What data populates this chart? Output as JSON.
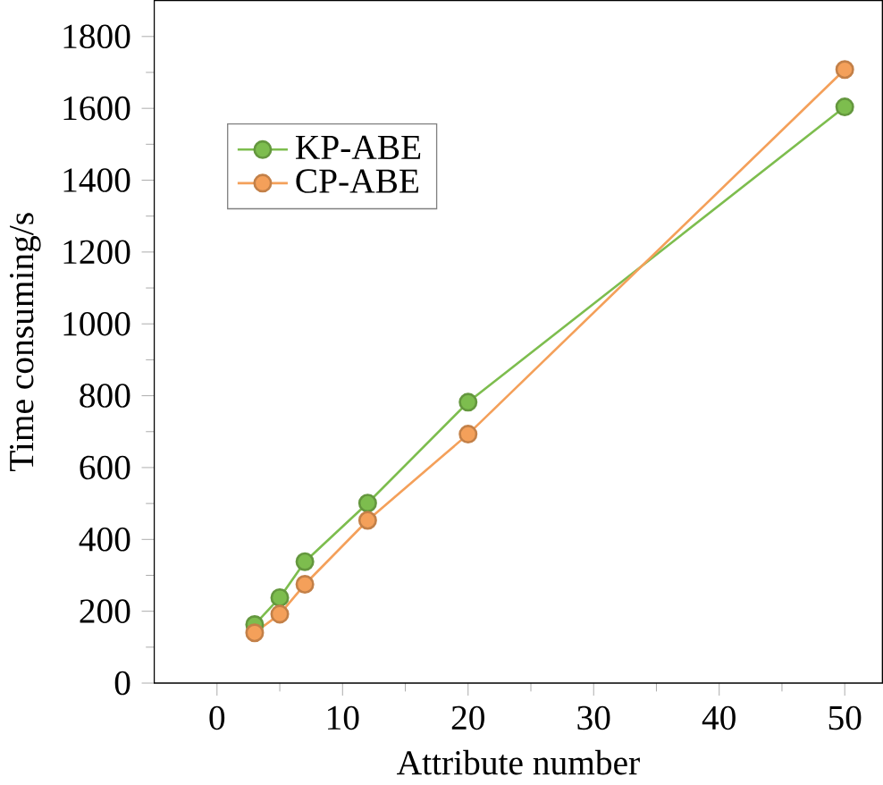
{
  "chart_data": {
    "type": "line",
    "xlabel": "Attribute number",
    "ylabel": "Time consuming/s",
    "x": [
      3,
      5,
      7,
      12,
      20,
      50
    ],
    "series": [
      {
        "name": "KP-ABE",
        "color": "#7dbd4e",
        "values": [
          163,
          238,
          338,
          501,
          782,
          1604
        ]
      },
      {
        "name": "CP-ABE",
        "color": "#f4a05a",
        "values": [
          140,
          192,
          275,
          453,
          693,
          1708
        ]
      }
    ],
    "xlim": [
      -5,
      53
    ],
    "ylim": [
      0,
      1900
    ],
    "xticks": [
      0,
      10,
      20,
      30,
      40,
      50
    ],
    "yticks": [
      0,
      200,
      400,
      600,
      800,
      1000,
      1200,
      1400,
      1600,
      1800
    ],
    "legend": "top left",
    "marker": "circle",
    "grid": false
  }
}
